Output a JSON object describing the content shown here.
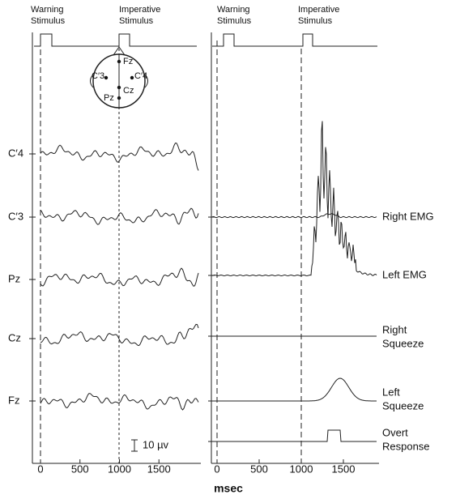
{
  "left_panel": {
    "stimulus_labels": [
      [
        "Warning",
        "Stimulus"
      ],
      [
        "Imperative",
        "Stimulus"
      ]
    ],
    "channels": [
      "C′4",
      "C′3",
      "Pz",
      "Cz",
      "Fz"
    ],
    "electrodes": [
      "Fz",
      "C′3",
      "C′4",
      "Cz",
      "Pz"
    ],
    "xticks": [
      0,
      500,
      1000,
      1500
    ],
    "scale_bar": "10 µv"
  },
  "right_panel": {
    "stimulus_labels": [
      [
        "Warning",
        "Stimulus"
      ],
      [
        "Imperative",
        "Stimulus"
      ]
    ],
    "traces": [
      [
        "Right EMG"
      ],
      [
        "Left EMG"
      ],
      [
        "Right",
        "Squeeze"
      ],
      [
        "Left",
        "Squeeze"
      ],
      [
        "Overt",
        "Response"
      ]
    ],
    "xticks": [
      0,
      500,
      1000,
      1500
    ]
  },
  "x_axis_label": "msec"
}
